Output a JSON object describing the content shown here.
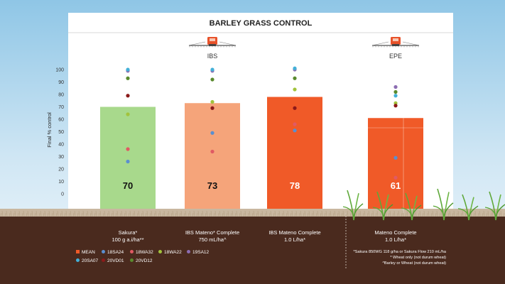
{
  "chart_data": {
    "type": "bar",
    "title": "BARLEY GRASS CONTROL",
    "ylabel": "Final % control",
    "ylim": [
      0,
      100
    ],
    "yticks": [
      0,
      10,
      20,
      30,
      40,
      50,
      60,
      70,
      80,
      90,
      100
    ],
    "groups": [
      {
        "label": "IBS",
        "categories": [
          1,
          2,
          3
        ]
      },
      {
        "label": "EPE",
        "categories": [
          4
        ]
      }
    ],
    "categories": [
      {
        "name": "Sakura*",
        "rate": "100 g a.i/ha**",
        "mean": 70,
        "color": "#a8d98c"
      },
      {
        "name": "IBS Mateno* Complete",
        "rate": "750 mL/ha^",
        "mean": 73,
        "color": "#f5a47a"
      },
      {
        "name": "IBS Mateno Complete",
        "rate": "1.0 L/ha*",
        "mean": 78,
        "color": "#f05a28"
      },
      {
        "name": "Mateno Complete",
        "rate": "1.0 L/ha*",
        "mean": 61,
        "color": "#f05a28"
      }
    ],
    "series": [
      {
        "name": "MEAN",
        "marker": "square",
        "color": "#f05a28",
        "values": [
          70,
          73,
          78,
          61
        ]
      },
      {
        "name": "18SA24",
        "color": "#5b8fcf",
        "values": [
          26,
          49,
          51,
          29
        ]
      },
      {
        "name": "18WA32",
        "color": "#e05a63",
        "values": [
          36,
          34,
          56,
          13
        ]
      },
      {
        "name": "18WA22",
        "color": "#a2c33c",
        "values": [
          64,
          74,
          84,
          73
        ]
      },
      {
        "name": "19SA12",
        "color": "#8c6db2",
        "values": [
          99,
          99,
          100,
          86
        ]
      },
      {
        "name": "20SA07",
        "color": "#43b0d8",
        "values": [
          100,
          100,
          101,
          79
        ]
      },
      {
        "name": "20VD01",
        "color": "#8b1a1a",
        "values": [
          79,
          69,
          69,
          71
        ]
      },
      {
        "name": "20VD12",
        "color": "#5a8a2e",
        "values": [
          93,
          92,
          93,
          82
        ]
      }
    ],
    "legend_position": "bottom-left",
    "grid": false,
    "footnotes": [
      "*Sakura 850WG 118 g/ha or Sakura Flow 210 mL/ha",
      "* Wheat only (not durum wheat)",
      "^Barley or Wheat (not durum wheat)"
    ]
  }
}
